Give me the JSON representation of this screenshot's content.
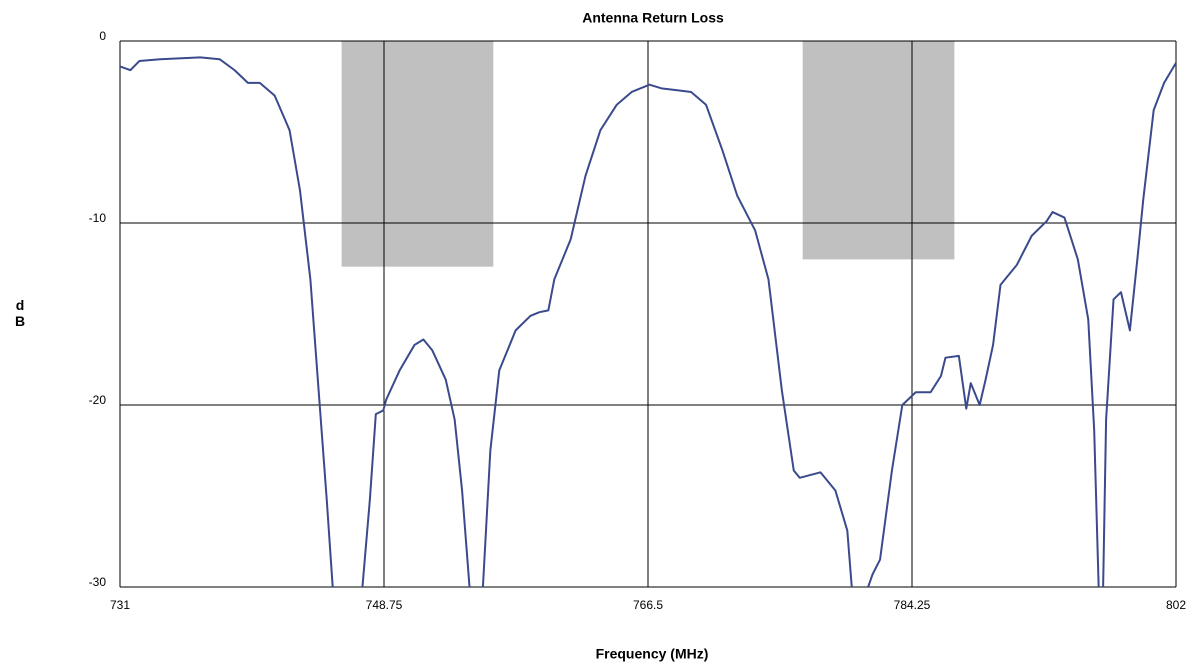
{
  "chart_data": {
    "type": "line",
    "title": "Antenna Return Loss",
    "xlabel": "Frequency (MHz)",
    "ylabel": "dB",
    "xlim": [
      731,
      802
    ],
    "xticks": [
      731,
      748.75,
      766.5,
      784.25,
      802
    ],
    "ylim": [
      -30,
      0
    ],
    "yticks": [
      0,
      -10,
      -20,
      -30
    ],
    "grid": true,
    "bands": [
      {
        "x": [
          745.9,
          756.1
        ],
        "bottom": -12.4,
        "top": 0,
        "color": "#c0c0c0"
      },
      {
        "x": [
          776.9,
          787.1
        ],
        "bottom": -12.0,
        "top": 0,
        "color": "#c0c0c0"
      }
    ],
    "series": [
      {
        "color": "#3b4a8c",
        "x": [
          731,
          731.7,
          732.3,
          733.7,
          736.4,
          737.7,
          738.7,
          739.6,
          740.4,
          741.4,
          742.4,
          743.1,
          743.8,
          744.4,
          744.9,
          745.3,
          null,
          747.3,
          747.8,
          748.2,
          748.7,
          748.9,
          749.8,
          750.8,
          751.4,
          752.0,
          752.9,
          753.5,
          754.0,
          754.5,
          null,
          755.4,
          755.9,
          756.5,
          757.6,
          758.6,
          759.2,
          759.8,
          760.2,
          761.3,
          762.3,
          763.3,
          764.4,
          765.4,
          766.6,
          767.4,
          768.4,
          769.4,
          770.4,
          771.5,
          772.5,
          773.7,
          774.6,
          775.5,
          776.3,
          776.7,
          778.1,
          779.1,
          779.9,
          780.2,
          null,
          781.3,
          781.6,
          782.1,
          782.9,
          783.6,
          784.5,
          785.5,
          786.2,
          786.5,
          787.4,
          787.9,
          788.2,
          788.8,
          789.2,
          789.7,
          790.2,
          791.3,
          792.3,
          793.3,
          793.7,
          794.5,
          795.4,
          796.1,
          796.5,
          796.8,
          null,
          797.1,
          797.3,
          797.8,
          798.3,
          798.9,
          799.4,
          799.8,
          800.5,
          801.2,
          802
        ],
        "values": [
          -1.4,
          -1.6,
          -1.1,
          -1.0,
          -0.9,
          -1.0,
          -1.6,
          -2.3,
          -2.3,
          -3.0,
          -4.9,
          -8.2,
          -13.1,
          -19.7,
          -25.2,
          -30,
          null,
          -30,
          -25.2,
          -20.5,
          -20.3,
          -19.7,
          -18.1,
          -16.7,
          -16.4,
          -17.0,
          -18.6,
          -20.8,
          -24.7,
          -30,
          null,
          -30,
          -22.5,
          -18.1,
          -15.9,
          -15.1,
          -14.9,
          -14.8,
          -13.1,
          -10.9,
          -7.4,
          -4.9,
          -3.5,
          -2.8,
          -2.4,
          -2.6,
          -2.7,
          -2.8,
          -3.5,
          -6.0,
          -8.5,
          -10.4,
          -13.1,
          -19.2,
          -23.6,
          -24.0,
          -23.7,
          -24.7,
          -26.9,
          -30,
          null,
          -30,
          -29.3,
          -28.5,
          -23.6,
          -20.0,
          -19.3,
          -19.3,
          -18.4,
          -17.4,
          -17.3,
          -20.2,
          -18.8,
          -20.0,
          -18.6,
          -16.7,
          -13.4,
          -12.3,
          -10.7,
          -9.9,
          -9.4,
          -9.7,
          -12.0,
          -15.3,
          -21.4,
          -30,
          null,
          -30,
          -20.8,
          -14.2,
          -13.8,
          -15.9,
          -12.0,
          -8.7,
          -3.8,
          -2.3,
          -1.2
        ]
      }
    ]
  }
}
